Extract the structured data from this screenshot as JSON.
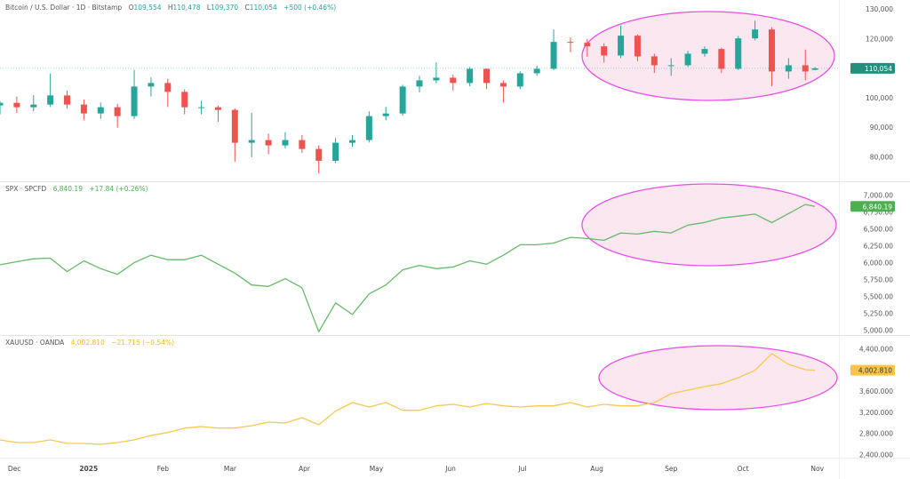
{
  "chart_data": [
    {
      "type": "candlestick",
      "legend": {
        "symbol": "Bitcoin / U.S. Dollar · 1D · Bitstamp",
        "open_label": "O",
        "open": "109,554",
        "high_label": "H",
        "high": "110,478",
        "low_label": "L",
        "low": "109,370",
        "close_label": "C",
        "close": "110,054",
        "change": "+500 (+0.46%)"
      },
      "last_price_label": "110,054",
      "last_price": 110054,
      "ylim": [
        71861,
        133167
      ],
      "y_ticks": [
        130000,
        120000,
        100000,
        90000,
        80000
      ],
      "y_tick_labels": [
        "130,000",
        "120,000",
        "100,000",
        "90,000",
        "80,000"
      ],
      "colors": {
        "up": "#26a69a",
        "down": "#ef5350",
        "label_bg": "#22907e"
      },
      "dates": [
        "2024-11-25",
        "2024-12-02",
        "2024-12-09",
        "2024-12-16",
        "2024-12-23",
        "2024-12-30",
        "2025-01-06",
        "2025-01-13",
        "2025-01-20",
        "2025-01-27",
        "2025-02-03",
        "2025-02-10",
        "2025-02-17",
        "2025-02-24",
        "2025-03-03",
        "2025-03-10",
        "2025-03-17",
        "2025-03-24",
        "2025-03-31",
        "2025-04-07",
        "2025-04-14",
        "2025-04-21",
        "2025-04-28",
        "2025-05-05",
        "2025-05-12",
        "2025-05-19",
        "2025-05-26",
        "2025-06-02",
        "2025-06-09",
        "2025-06-16",
        "2025-06-23",
        "2025-06-30",
        "2025-07-07",
        "2025-07-14",
        "2025-07-21",
        "2025-07-28",
        "2025-08-04",
        "2025-08-11",
        "2025-08-18",
        "2025-08-25",
        "2025-09-01",
        "2025-09-08",
        "2025-09-15",
        "2025-09-22",
        "2025-09-29",
        "2025-10-06",
        "2025-10-13",
        "2025-10-20",
        "2025-10-27",
        "2025-10-31"
      ],
      "ohlc": [
        [
          97500,
          99000,
          94500,
          98400
        ],
        [
          98400,
          100500,
          95000,
          96900
        ],
        [
          96900,
          101000,
          95500,
          97800
        ],
        [
          97800,
          108300,
          97000,
          100900
        ],
        [
          100900,
          102500,
          96500,
          97800
        ],
        [
          97800,
          99500,
          92500,
          94800
        ],
        [
          94800,
          98500,
          93000,
          96900
        ],
        [
          96900,
          98000,
          90000,
          93900
        ],
        [
          93900,
          109500,
          93000,
          103900
        ],
        [
          103900,
          107000,
          100500,
          105100
        ],
        [
          105100,
          106500,
          97000,
          102100
        ],
        [
          102100,
          103000,
          94500,
          96900
        ],
        [
          96900,
          99000,
          94500,
          96900
        ],
        [
          96900,
          97500,
          92000,
          96000
        ],
        [
          96000,
          96500,
          78500,
          84900
        ],
        [
          84900,
          95000,
          80000,
          85800
        ],
        [
          85800,
          88000,
          81000,
          84000
        ],
        [
          84000,
          88500,
          83000,
          85800
        ],
        [
          85800,
          87500,
          81500,
          82800
        ],
        [
          82800,
          84000,
          74500,
          78800
        ],
        [
          78800,
          86500,
          78000,
          84900
        ],
        [
          84900,
          87500,
          83500,
          85800
        ],
        [
          85800,
          95500,
          85000,
          93900
        ],
        [
          93900,
          97000,
          92500,
          94800
        ],
        [
          94800,
          104500,
          94000,
          103900
        ],
        [
          103900,
          107500,
          102000,
          106000
        ],
        [
          106000,
          112000,
          105000,
          106900
        ],
        [
          106900,
          108000,
          102500,
          105100
        ],
        [
          105100,
          110500,
          104000,
          109900
        ],
        [
          109900,
          110000,
          103000,
          105100
        ],
        [
          105100,
          106000,
          98500,
          103900
        ],
        [
          103900,
          109000,
          103000,
          108400
        ],
        [
          108400,
          111000,
          107500,
          109900
        ],
        [
          109900,
          123200,
          109500,
          119000
        ],
        [
          119000,
          120500,
          115500,
          118700
        ],
        [
          118700,
          120000,
          114000,
          117500
        ],
        [
          117500,
          118500,
          112000,
          114400
        ],
        [
          114400,
          124500,
          113500,
          121100
        ],
        [
          121100,
          121500,
          112500,
          114100
        ],
        [
          114100,
          115000,
          108500,
          111100
        ],
        [
          111100,
          113500,
          107500,
          111100
        ],
        [
          111100,
          116000,
          110500,
          115000
        ],
        [
          115000,
          117500,
          114000,
          116600
        ],
        [
          116600,
          117000,
          108500,
          109900
        ],
        [
          109900,
          121000,
          109500,
          120200
        ],
        [
          120200,
          126200,
          119500,
          123200
        ],
        [
          123200,
          124000,
          104000,
          109000
        ],
        [
          109000,
          113500,
          106500,
          111100
        ],
        [
          111100,
          116400,
          106000,
          109000
        ],
        [
          109554,
          110478,
          109370,
          110054
        ]
      ]
    },
    {
      "type": "line",
      "legend": {
        "symbol": "SPX · SPCFD",
        "value": "6,840.19",
        "change": "+17.84 (+0.26%)"
      },
      "last_price_label": "6,840.19",
      "last_price": 6840.19,
      "ylim": [
        4936,
        7212
      ],
      "y_ticks": [
        7000,
        6750,
        6500,
        6250,
        6000,
        5750,
        5500,
        5250,
        5000
      ],
      "y_tick_labels": [
        "7,000.00",
        "6,750.00",
        "6,500.00",
        "6,250.00",
        "6,000.00",
        "5,750.00",
        "5,500.00",
        "5,250.00",
        "5,000.00"
      ],
      "colors": {
        "line": "#66bb6a",
        "label_bg": "#4caf50"
      },
      "values": [
        5977,
        6021,
        6065,
        6074,
        5875,
        6034,
        5919,
        5835,
        6008,
        6118,
        6052,
        6052,
        6118,
        5985,
        5853,
        5677,
        5655,
        5770,
        5637,
        4985,
        5412,
        5240,
        5545,
        5677,
        5902,
        5968,
        5919,
        5942,
        6034,
        5985,
        6118,
        6272,
        6272,
        6298,
        6382,
        6365,
        6338,
        6448,
        6431,
        6471,
        6448,
        6563,
        6603,
        6669,
        6696,
        6726,
        6600,
        6735,
        6868,
        6840.19
      ]
    },
    {
      "type": "line",
      "legend": {
        "symbol": "XAUUSD · OANDA",
        "value": "4,002.810",
        "change": "−21.715 (−0.54%)"
      },
      "last_price_label": "4,002.810",
      "last_price": 4002.81,
      "ylim": [
        2350,
        4669
      ],
      "y_ticks": [
        4400,
        3600,
        3200,
        2800,
        2400
      ],
      "y_tick_labels": [
        "4,400.000",
        "3,600.000",
        "3,200.000",
        "2,800.000",
        "2,400.000"
      ],
      "colors": {
        "line": "#f9c850",
        "label_bg": "#f9c548"
      },
      "values": [
        2686,
        2636,
        2636,
        2686,
        2620,
        2619,
        2602,
        2636,
        2686,
        2770,
        2826,
        2910,
        2938,
        2910,
        2910,
        2955,
        3022,
        3006,
        3106,
        2972,
        3230,
        3392,
        3308,
        3392,
        3246,
        3246,
        3330,
        3358,
        3308,
        3375,
        3330,
        3308,
        3330,
        3330,
        3392,
        3308,
        3358,
        3330,
        3330,
        3392,
        3560,
        3627,
        3694,
        3750,
        3862,
        4002,
        4316,
        4114,
        4014,
        4002.81
      ]
    }
  ],
  "x_axis": {
    "range": [
      "2024-11-25",
      "2025-11-10"
    ],
    "ticks": [
      {
        "date": "2024-12-01",
        "label": "Dec"
      },
      {
        "date": "2025-01-01",
        "label": "2025",
        "bold": true
      },
      {
        "date": "2025-02-01",
        "label": "Feb"
      },
      {
        "date": "2025-03-01",
        "label": "Mar"
      },
      {
        "date": "2025-04-01",
        "label": "Apr"
      },
      {
        "date": "2025-05-01",
        "label": "May"
      },
      {
        "date": "2025-06-01",
        "label": "Jun"
      },
      {
        "date": "2025-07-01",
        "label": "Jul"
      },
      {
        "date": "2025-08-01",
        "label": "Aug"
      },
      {
        "date": "2025-09-01",
        "label": "Sep"
      },
      {
        "date": "2025-10-01",
        "label": "Oct"
      },
      {
        "date": "2025-11-01",
        "label": "Nov"
      }
    ]
  },
  "annotation_colors": {
    "stroke": "#e94fe6",
    "fill": "#f8d3e2"
  }
}
